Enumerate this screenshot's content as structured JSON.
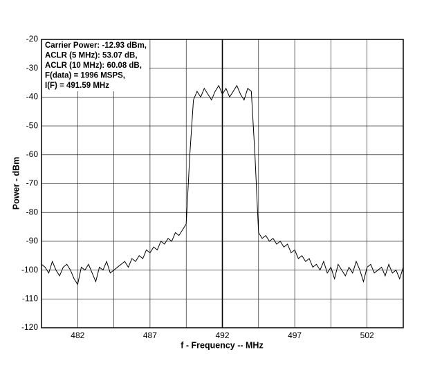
{
  "chart_data": {
    "type": "line",
    "x_label": "f - Frequency -- MHz",
    "y_label": "Power - dBm",
    "annotations": [
      "Carrier Power: -12.93 dBm,",
      "ACLR (5 MHz): 53.07 dB,",
      "ACLR (10 MHz): 60.08 dB,",
      "F(data) = 1996 MSPS,",
      "I(F) = 491.59 MHz"
    ],
    "xlim": [
      479.5,
      504.5
    ],
    "ylim": [
      -120,
      -20
    ],
    "xticks": [
      482,
      487,
      492,
      497,
      502
    ],
    "x_minor_grid": [
      484.5,
      489.5,
      494.5,
      499.5
    ],
    "yticks": [
      -120,
      -110,
      -100,
      -90,
      -80,
      -70,
      -60,
      -50,
      -40,
      -30,
      -20
    ],
    "center_marker": 492,
    "grid": true,
    "color": "#000000",
    "x": [
      479.5,
      479.75,
      480,
      480.25,
      480.5,
      480.75,
      481,
      481.25,
      481.5,
      481.75,
      482,
      482.25,
      482.5,
      482.75,
      483,
      483.25,
      483.5,
      483.75,
      484,
      484.25,
      484.5,
      484.75,
      485,
      485.25,
      485.5,
      485.75,
      486,
      486.25,
      486.5,
      486.75,
      487,
      487.25,
      487.5,
      487.75,
      488,
      488.25,
      488.5,
      488.75,
      489,
      489.25,
      489.5,
      489.75,
      490,
      490.25,
      490.5,
      490.75,
      491,
      491.25,
      491.5,
      491.75,
      492,
      492.25,
      492.5,
      492.75,
      493,
      493.25,
      493.5,
      493.75,
      494,
      494.25,
      494.5,
      494.75,
      495,
      495.25,
      495.5,
      495.75,
      496,
      496.25,
      496.5,
      496.75,
      497,
      497.25,
      497.5,
      497.75,
      498,
      498.25,
      498.5,
      498.75,
      499,
      499.25,
      499.5,
      499.75,
      500,
      500.25,
      500.5,
      500.75,
      501,
      501.25,
      501.5,
      501.75,
      502,
      502.25,
      502.5,
      502.75,
      503,
      503.25,
      503.5,
      503.75,
      504,
      504.25,
      504.5
    ],
    "values": [
      -98,
      -99,
      -101,
      -97,
      -100,
      -102,
      -99,
      -98,
      -100,
      -103,
      -105,
      -99,
      -100,
      -98,
      -101,
      -104,
      -99,
      -100,
      -97,
      -101,
      -100,
      -99,
      -98,
      -97,
      -99,
      -96,
      -97,
      -95,
      -96,
      -93,
      -94,
      -92,
      -93,
      -90,
      -91,
      -89,
      -90,
      -87,
      -88,
      -86,
      -84,
      -60,
      -41,
      -38,
      -40,
      -37,
      -39,
      -41,
      -38,
      -36,
      -39,
      -37,
      -40,
      -38,
      -36,
      -39,
      -41,
      -37,
      -38,
      -60,
      -87,
      -89,
      -88,
      -90,
      -89,
      -91,
      -90,
      -92,
      -91,
      -94,
      -93,
      -96,
      -95,
      -97,
      -96,
      -99,
      -98,
      -100,
      -97,
      -101,
      -99,
      -103,
      -98,
      -100,
      -102,
      -99,
      -101,
      -97,
      -100,
      -104,
      -99,
      -98,
      -101,
      -100,
      -99,
      -102,
      -98,
      -101,
      -100,
      -103,
      -99
    ]
  }
}
